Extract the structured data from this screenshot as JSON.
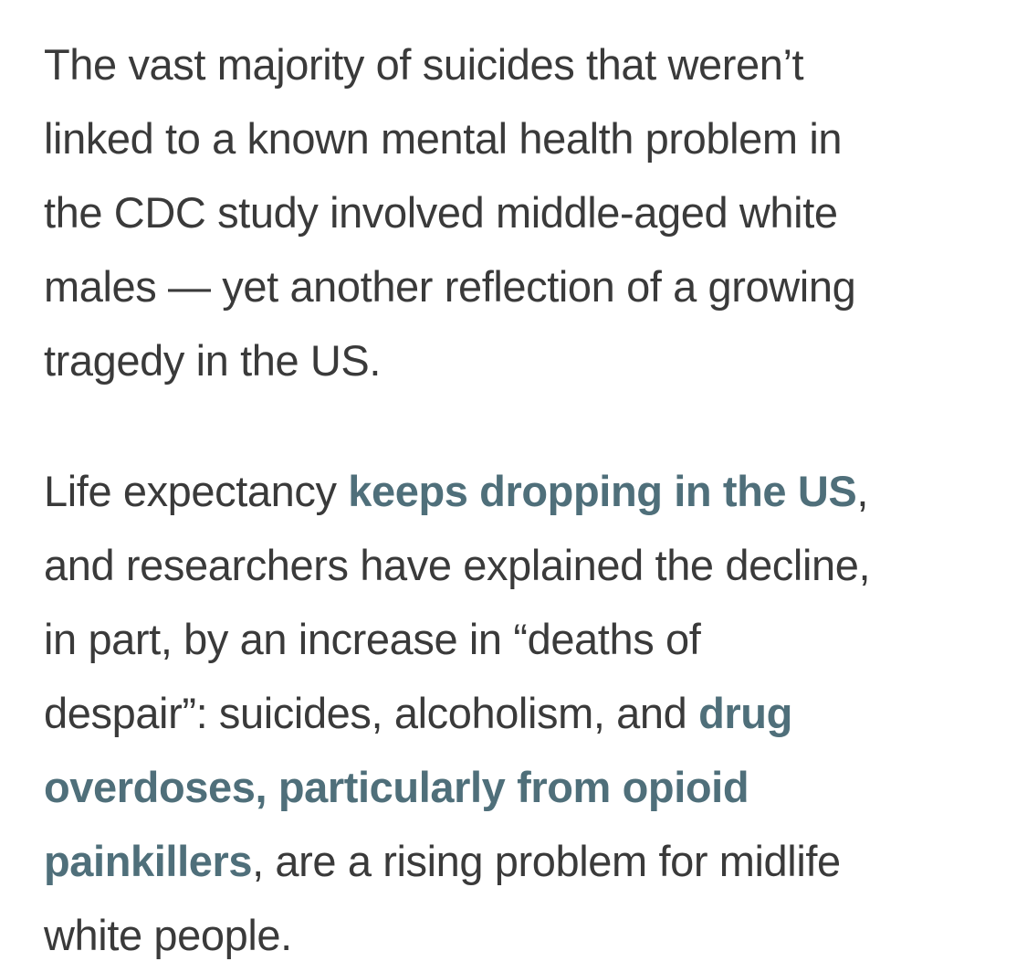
{
  "article": {
    "paragraph1": {
      "lines": [
        "The vast majority of suicides that weren’t",
        "linked to a known mental health problem in",
        "the CDC study involved middle-aged white",
        "males — yet another reflection of a growing",
        "tragedy in the US."
      ]
    },
    "paragraph2": {
      "line1_text_a": "Life expectancy ",
      "link1": "keeps dropping in the US",
      "line1_text_b": ",",
      "line2": "and researchers have explained the decline,",
      "line3": "in part, by an increase in “deaths of",
      "line4_text": "despair”: suicides, alcoholism, and ",
      "link2_part1": "drug",
      "link2_part2": "overdoses, particularly from opioid",
      "link2_part3": "painkillers",
      "line7_text": ", are a rising problem for midlife",
      "line8": "white people."
    }
  },
  "colors": {
    "body_text": "#3a3a3a",
    "link": "#4f6f7a",
    "background": "#ffffff"
  }
}
